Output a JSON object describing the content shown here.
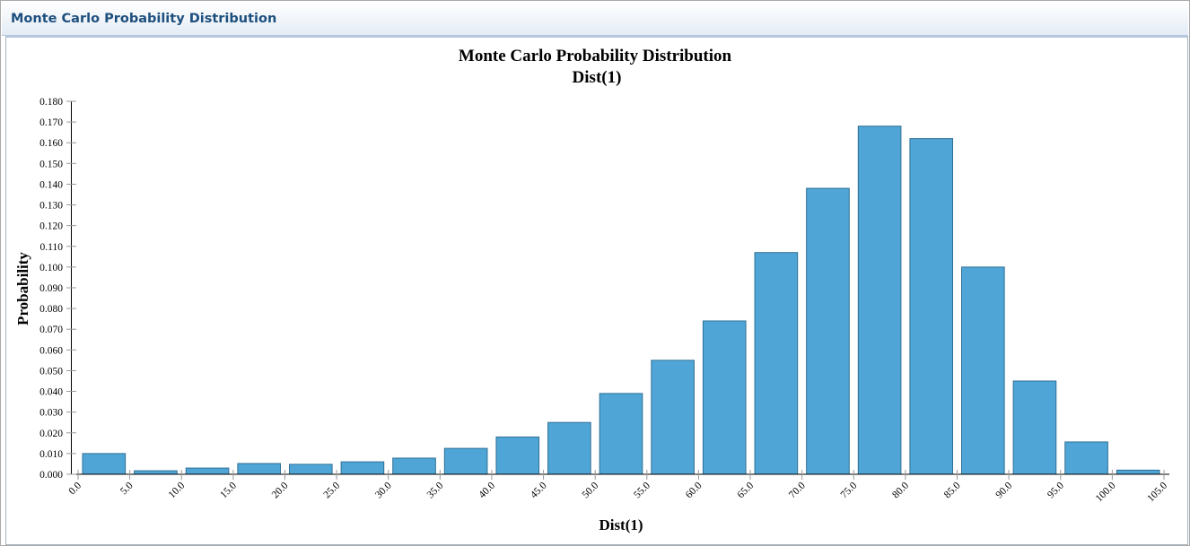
{
  "header": {
    "title": "Monte Carlo Probability Distribution"
  },
  "chart_data": {
    "type": "bar",
    "title": "Monte Carlo Probability Distribution",
    "subtitle": "Dist(1)",
    "xlabel": "Dist(1)",
    "ylabel": "Probability",
    "x_ticks": [
      "0.0",
      "5.0",
      "10.0",
      "15.0",
      "20.0",
      "25.0",
      "30.0",
      "35.0",
      "40.0",
      "45.0",
      "50.0",
      "55.0",
      "60.0",
      "65.0",
      "70.0",
      "75.0",
      "80.0",
      "85.0",
      "90.0",
      "95.0",
      "100.0",
      "105.0"
    ],
    "y_ticks": [
      "0.000",
      "0.010",
      "0.020",
      "0.030",
      "0.040",
      "0.050",
      "0.060",
      "0.070",
      "0.080",
      "0.090",
      "0.100",
      "0.110",
      "0.120",
      "0.130",
      "0.140",
      "0.150",
      "0.160",
      "0.170",
      "0.180"
    ],
    "bin_starts": [
      0,
      5,
      10,
      15,
      20,
      25,
      30,
      35,
      40,
      45,
      50,
      55,
      60,
      65,
      70,
      75,
      80,
      85,
      90,
      95,
      100
    ],
    "bin_width": 5,
    "values": [
      0.01,
      0.0017,
      0.003,
      0.0052,
      0.0048,
      0.006,
      0.0078,
      0.0125,
      0.018,
      0.025,
      0.039,
      0.055,
      0.074,
      0.107,
      0.138,
      0.168,
      0.162,
      0.1,
      0.045,
      0.0156,
      0.002
    ],
    "xlim": [
      0,
      105
    ],
    "ylim": [
      0,
      0.18
    ],
    "grid": false,
    "bar_color": "#4fa6d6",
    "bar_edge_color": "#2f6f95"
  }
}
